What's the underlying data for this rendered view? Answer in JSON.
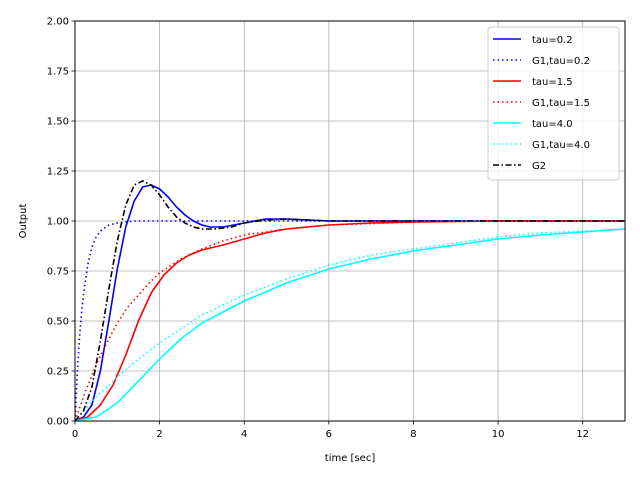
{
  "chart_data": {
    "type": "line",
    "xlabel": "time [sec]",
    "ylabel": "Output",
    "xlim": [
      0,
      13
    ],
    "ylim": [
      0,
      2.0
    ],
    "x_ticks": [
      "0",
      "2",
      "4",
      "6",
      "8",
      "10",
      "12"
    ],
    "y_ticks": [
      "0.00",
      "0.25",
      "0.50",
      "0.75",
      "1.00",
      "1.25",
      "1.50",
      "1.75",
      "2.00"
    ],
    "grid": true,
    "legend_position": "top-right",
    "series": [
      {
        "name": "tau=0.2",
        "color": "#0000ff",
        "style": "solid",
        "points": [
          [
            0,
            0
          ],
          [
            0.2,
            0.02
          ],
          [
            0.4,
            0.08
          ],
          [
            0.6,
            0.25
          ],
          [
            0.8,
            0.5
          ],
          [
            1.0,
            0.76
          ],
          [
            1.2,
            0.97
          ],
          [
            1.4,
            1.1
          ],
          [
            1.6,
            1.17
          ],
          [
            1.8,
            1.18
          ],
          [
            2.0,
            1.16
          ],
          [
            2.2,
            1.12
          ],
          [
            2.4,
            1.07
          ],
          [
            2.6,
            1.03
          ],
          [
            2.8,
            1.0
          ],
          [
            3.0,
            0.98
          ],
          [
            3.2,
            0.97
          ],
          [
            3.5,
            0.97
          ],
          [
            4.0,
            0.99
          ],
          [
            4.5,
            1.01
          ],
          [
            5.0,
            1.01
          ],
          [
            5.5,
            1.005
          ],
          [
            6.0,
            1.0
          ],
          [
            8,
            1.0
          ],
          [
            13,
            1.0
          ]
        ]
      },
      {
        "name": "G1,tau=0.2",
        "color": "#0000ff",
        "style": "dotted",
        "points": [
          [
            0,
            0
          ],
          [
            0.05,
            0.22
          ],
          [
            0.1,
            0.4
          ],
          [
            0.15,
            0.53
          ],
          [
            0.2,
            0.63
          ],
          [
            0.3,
            0.78
          ],
          [
            0.4,
            0.87
          ],
          [
            0.5,
            0.92
          ],
          [
            0.6,
            0.95
          ],
          [
            0.8,
            0.98
          ],
          [
            1.0,
            0.99
          ],
          [
            1.4,
            1.0
          ],
          [
            13,
            1.0
          ]
        ]
      },
      {
        "name": "tau=1.5",
        "color": "#ff0000",
        "style": "solid",
        "points": [
          [
            0,
            0
          ],
          [
            0.3,
            0.02
          ],
          [
            0.6,
            0.08
          ],
          [
            0.9,
            0.18
          ],
          [
            1.2,
            0.33
          ],
          [
            1.5,
            0.5
          ],
          [
            1.8,
            0.64
          ],
          [
            2.1,
            0.73
          ],
          [
            2.4,
            0.79
          ],
          [
            2.7,
            0.83
          ],
          [
            3.0,
            0.855
          ],
          [
            3.5,
            0.88
          ],
          [
            4.0,
            0.91
          ],
          [
            4.5,
            0.94
          ],
          [
            5.0,
            0.96
          ],
          [
            6.0,
            0.98
          ],
          [
            7.0,
            0.99
          ],
          [
            8.0,
            0.995
          ],
          [
            10,
            1.0
          ],
          [
            13,
            1.0
          ]
        ]
      },
      {
        "name": "G1,tau=1.5",
        "color": "#ff0000",
        "style": "dotted",
        "points": [
          [
            0,
            0
          ],
          [
            0.25,
            0.15
          ],
          [
            0.5,
            0.28
          ],
          [
            0.75,
            0.39
          ],
          [
            1.0,
            0.49
          ],
          [
            1.25,
            0.57
          ],
          [
            1.5,
            0.63
          ],
          [
            1.75,
            0.69
          ],
          [
            2.0,
            0.74
          ],
          [
            2.5,
            0.81
          ],
          [
            3.0,
            0.86
          ],
          [
            3.5,
            0.9
          ],
          [
            4.0,
            0.93
          ],
          [
            5.0,
            0.96
          ],
          [
            6.0,
            0.98
          ],
          [
            8.0,
            0.995
          ],
          [
            10,
            1.0
          ],
          [
            13,
            1.0
          ]
        ]
      },
      {
        "name": "tau=4.0",
        "color": "#00ffff",
        "style": "solid",
        "points": [
          [
            0,
            0
          ],
          [
            0.5,
            0.02
          ],
          [
            1.0,
            0.09
          ],
          [
            1.5,
            0.2
          ],
          [
            2.0,
            0.31
          ],
          [
            2.5,
            0.41
          ],
          [
            3.0,
            0.49
          ],
          [
            4.0,
            0.6
          ],
          [
            5.0,
            0.69
          ],
          [
            6.0,
            0.76
          ],
          [
            7.0,
            0.81
          ],
          [
            8.0,
            0.85
          ],
          [
            9.0,
            0.88
          ],
          [
            10,
            0.91
          ],
          [
            11,
            0.93
          ],
          [
            12,
            0.945
          ],
          [
            13,
            0.96
          ]
        ]
      },
      {
        "name": "G1,tau=4.0",
        "color": "#00ffff",
        "style": "dotted",
        "points": [
          [
            0,
            0
          ],
          [
            0.5,
            0.12
          ],
          [
            1.0,
            0.22
          ],
          [
            1.5,
            0.31
          ],
          [
            2.0,
            0.39
          ],
          [
            2.5,
            0.46
          ],
          [
            3.0,
            0.53
          ],
          [
            4.0,
            0.63
          ],
          [
            5.0,
            0.71
          ],
          [
            6.0,
            0.78
          ],
          [
            7.0,
            0.83
          ],
          [
            8.0,
            0.86
          ],
          [
            9.0,
            0.89
          ],
          [
            10,
            0.92
          ],
          [
            11,
            0.94
          ],
          [
            12,
            0.95
          ],
          [
            13,
            0.96
          ]
        ]
      },
      {
        "name": "G2",
        "color": "#000000",
        "style": "dashdot",
        "points": [
          [
            0,
            0
          ],
          [
            0.2,
            0.05
          ],
          [
            0.4,
            0.17
          ],
          [
            0.6,
            0.4
          ],
          [
            0.8,
            0.66
          ],
          [
            1.0,
            0.9
          ],
          [
            1.2,
            1.08
          ],
          [
            1.4,
            1.18
          ],
          [
            1.6,
            1.2
          ],
          [
            1.8,
            1.18
          ],
          [
            2.0,
            1.13
          ],
          [
            2.2,
            1.07
          ],
          [
            2.4,
            1.02
          ],
          [
            2.6,
            0.99
          ],
          [
            2.8,
            0.97
          ],
          [
            3.0,
            0.96
          ],
          [
            3.3,
            0.96
          ],
          [
            3.7,
            0.97
          ],
          [
            4.0,
            0.99
          ],
          [
            4.5,
            1.005
          ],
          [
            5.0,
            1.01
          ],
          [
            5.5,
            1.005
          ],
          [
            6.0,
            1.0
          ],
          [
            8,
            1.0
          ],
          [
            13,
            1.0
          ]
        ]
      }
    ]
  }
}
